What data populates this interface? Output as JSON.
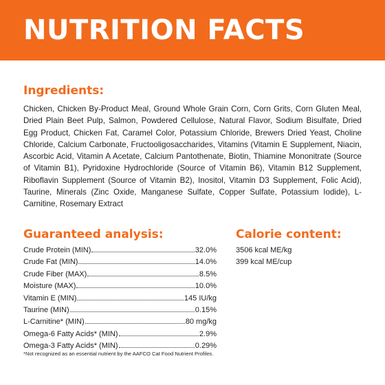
{
  "banner": {
    "title": "NUTRITION FACTS",
    "color": "#f26b1d"
  },
  "ingredients": {
    "heading": "Ingredients:",
    "text": "Chicken, Chicken By-Product Meal, Ground Whole Grain Corn, Corn Grits, Corn Gluten Meal, Dried Plain Beet Pulp, Salmon, Powdered Cellulose, Natural Flavor, Sodium Bisulfate, Dried Egg Product, Chicken Fat, Caramel Color, Potassium Chloride, Brewers Dried Yeast, Choline Chloride, Calcium Carbonate, Fructooligosaccharides, Vitamins (Vitamin E Supplement, Niacin, Ascorbic Acid, Vitamin A Acetate, Calcium Pantothenate, Biotin, Thiamine Mononitrate (Source of Vitamin B1), Pyridoxine Hydrochloride (Source of Vitamin B6), Vitamin B12 Supplement, Riboflavin Supplement (Source of Vitamin B2), Inositol, Vitamin D3 Supplement, Folic Acid), Taurine, Minerals (Zinc Oxide, Manganese Sulfate, Copper Sulfate, Potassium Iodide), L-Carnitine, Rosemary Extract"
  },
  "guaranteed_analysis": {
    "heading": "Guaranteed analysis:",
    "rows": [
      {
        "name": "Crude Protein (MIN)",
        "value": "32.0%"
      },
      {
        "name": "Crude Fat (MIN)",
        "value": "14.0%"
      },
      {
        "name": "Crude Fiber (MAX)",
        "value": "8.5%"
      },
      {
        "name": "Moisture (MAX)",
        "value": "10.0%"
      },
      {
        "name": "Vitamin E (MIN)",
        "value": "145 IU/kg"
      },
      {
        "name": "Taurine (MIN)",
        "value": "0.15%"
      },
      {
        "name": "L-Carnitine* (MIN)",
        "value": "80 mg/kg"
      },
      {
        "name": "Omega-6 Fatty Acids* (MIN)",
        "value": "2.9%"
      },
      {
        "name": "Omega-3 Fatty Acids* (MIN)",
        "value": "0.29%"
      }
    ]
  },
  "calorie_content": {
    "heading": "Calorie content:",
    "lines": [
      "3506 kcal ME/kg",
      "399 kcal ME/cup"
    ]
  },
  "footnote": "*Not recognized as an essential nutrient by the AAFCO Cat Food Nutrient Profiles."
}
